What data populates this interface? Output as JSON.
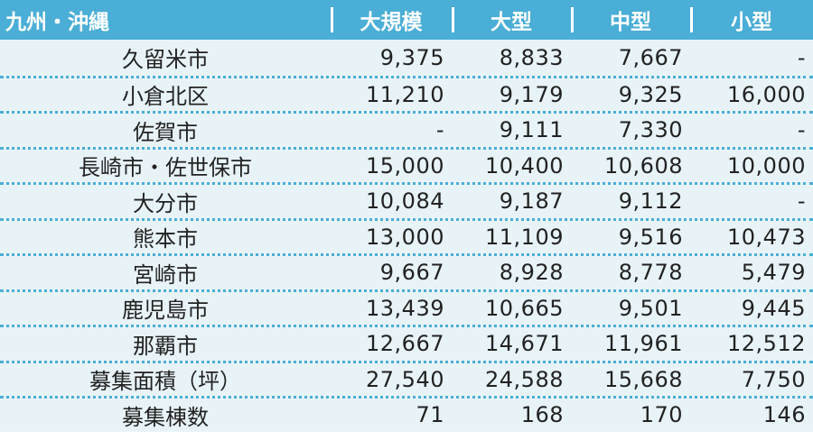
{
  "table": {
    "headers": [
      "九州・沖縄",
      "大規模",
      "大型",
      "中型",
      "小型"
    ],
    "rows": [
      [
        "久留米市",
        "9,375",
        "8,833",
        "7,667",
        "-"
      ],
      [
        "小倉北区",
        "11,210",
        "9,179",
        "9,325",
        "16,000"
      ],
      [
        "佐賀市",
        "-",
        "9,111",
        "7,330",
        "-"
      ],
      [
        "長崎市・佐世保市",
        "15,000",
        "10,400",
        "10,608",
        "10,000"
      ],
      [
        "大分市",
        "10,084",
        "9,187",
        "9,112",
        "-"
      ],
      [
        "熊本市",
        "13,000",
        "11,109",
        "9,516",
        "10,473"
      ],
      [
        "宮崎市",
        "9,667",
        "8,928",
        "8,778",
        "5,479"
      ],
      [
        "鹿児島市",
        "13,439",
        "10,665",
        "9,501",
        "9,445"
      ],
      [
        "那覇市",
        "12,667",
        "14,671",
        "11,961",
        "12,512"
      ],
      [
        "募集面積（坪）",
        "27,540",
        "24,588",
        "15,668",
        "7,750"
      ],
      [
        "募集棟数",
        "71",
        "168",
        "170",
        "146"
      ]
    ]
  },
  "colors": {
    "header_bg": "#4aaed6",
    "row_bg": "#e8f3f8",
    "divider": "#4aaed6"
  }
}
